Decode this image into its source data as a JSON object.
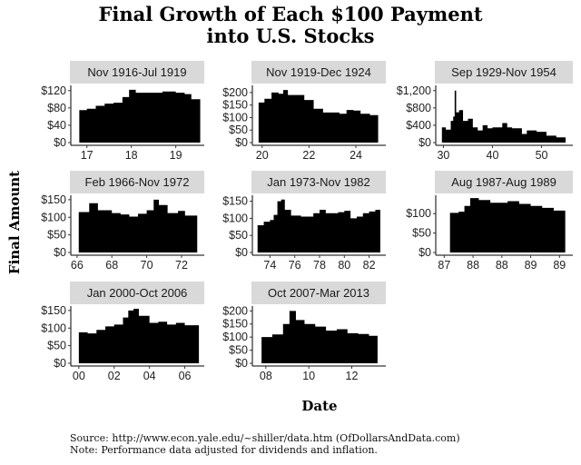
{
  "chart_data": {
    "type": "area",
    "title": [
      "Final Growth of Each $100 Payment",
      "into U.S. Stocks"
    ],
    "xlabel": "Date",
    "ylabel": "Final Amount",
    "source": "Source:  http://www.econ.yale.edu/~shiller/data.htm (OfDollarsAndData.com)",
    "note": "Note:  Performance data adjusted for dividends and inflation.",
    "fill_color": "#000000",
    "strip_color": "#d9d9d9",
    "grid": false,
    "panels": [
      {
        "label": "Nov 1916-Jul 1919",
        "xlim": [
          16.7,
          19.6
        ],
        "ylim": [
          0,
          130
        ],
        "xticks": [
          17,
          18,
          19
        ],
        "xticklabels": [
          "17",
          "18",
          "19"
        ],
        "yticks": [
          0,
          40,
          80,
          120
        ],
        "yticklabels": [
          "$0",
          "$40",
          "$80",
          "$120"
        ],
        "x": [
          16.83,
          17.0,
          17.2,
          17.4,
          17.6,
          17.8,
          17.95,
          18.1,
          18.4,
          18.7,
          19.0,
          19.2,
          19.35,
          19.55
        ],
        "y": [
          75,
          78,
          85,
          90,
          92,
          105,
          122,
          115,
          115,
          118,
          115,
          112,
          100,
          98
        ]
      },
      {
        "label": "Nov 1919-Dec 1924",
        "xlim": [
          19.7,
          25.2
        ],
        "ylim": [
          0,
          225
        ],
        "xticks": [
          20,
          22,
          24
        ],
        "xticklabels": [
          "20",
          "22",
          "24"
        ],
        "yticks": [
          0,
          50,
          100,
          150,
          200
        ],
        "yticklabels": [
          "$0",
          "$50",
          "$100",
          "$150",
          "$200"
        ],
        "x": [
          19.85,
          20.1,
          20.4,
          20.7,
          20.9,
          21.1,
          21.5,
          21.8,
          22.2,
          22.6,
          23.0,
          23.3,
          23.6,
          23.9,
          24.2,
          24.6,
          24.95
        ],
        "y": [
          160,
          175,
          200,
          195,
          210,
          190,
          190,
          170,
          135,
          120,
          120,
          115,
          130,
          128,
          115,
          110,
          98
        ]
      },
      {
        "label": "Sep 1929-Nov 1954",
        "xlim": [
          29,
          56
        ],
        "ylim": [
          0,
          1300
        ],
        "xticks": [
          30,
          40,
          50
        ],
        "xticklabels": [
          "30",
          "40",
          "50"
        ],
        "yticks": [
          0,
          400,
          800,
          1200
        ],
        "yticklabels": [
          "$0",
          "$400",
          "$800",
          "$1,200"
        ],
        "x": [
          29.7,
          30.5,
          31.5,
          32.0,
          32.3,
          32.6,
          33.2,
          34,
          35,
          36,
          37,
          38,
          39,
          40,
          42,
          43,
          44,
          46,
          47,
          49,
          51,
          53,
          54.9
        ],
        "y": [
          350,
          300,
          500,
          600,
          1200,
          700,
          750,
          500,
          550,
          350,
          280,
          400,
          330,
          350,
          450,
          350,
          330,
          200,
          280,
          250,
          160,
          120,
          80
        ]
      },
      {
        "label": "Feb 1966-Nov 1972",
        "xlim": [
          65.8,
          73.2
        ],
        "ylim": [
          0,
          160
        ],
        "xticks": [
          66,
          68,
          70,
          72
        ],
        "xticklabels": [
          "66",
          "68",
          "70",
          "72"
        ],
        "yticks": [
          0,
          50,
          100,
          150
        ],
        "yticklabels": [
          "$0",
          "$50",
          "$100",
          "$150"
        ],
        "x": [
          66.1,
          66.7,
          67.2,
          68,
          68.5,
          69,
          69.5,
          70,
          70.4,
          70.7,
          71.2,
          71.8,
          72.2,
          72.9
        ],
        "y": [
          115,
          140,
          120,
          112,
          108,
          102,
          110,
          120,
          150,
          135,
          112,
          118,
          105,
          98
        ]
      },
      {
        "label": "Jan 1973-Nov 1982",
        "xlim": [
          72.8,
          83.2
        ],
        "ylim": [
          0,
          165
        ],
        "xticks": [
          74,
          76,
          78,
          80,
          82
        ],
        "xticklabels": [
          "74",
          "76",
          "78",
          "80",
          "82"
        ],
        "yticks": [
          0,
          50,
          100,
          150
        ],
        "yticklabels": [
          "$0",
          "$50",
          "$100",
          "$150"
        ],
        "x": [
          73,
          73.5,
          74,
          74.3,
          74.6,
          74.9,
          75.2,
          75.7,
          76.5,
          77.5,
          78,
          78.5,
          79.5,
          80,
          80.5,
          81,
          81.5,
          82,
          82.5,
          82.9
        ],
        "y": [
          80,
          90,
          95,
          110,
          150,
          155,
          125,
          108,
          105,
          115,
          125,
          115,
          118,
          122,
          100,
          105,
          115,
          120,
          125,
          98
        ]
      },
      {
        "label": "Aug 1987-Aug 1989",
        "xlim": [
          87.4,
          89.7
        ],
        "ylim": [
          0,
          145
        ],
        "xticks": [
          87.5,
          88,
          88.5,
          89,
          89.5
        ],
        "xticklabels": [
          "87",
          "88",
          "88",
          "89",
          "89"
        ],
        "yticks": [
          0,
          50,
          100
        ],
        "yticklabels": [
          "$0",
          "$50",
          "$100"
        ],
        "x": [
          87.6,
          87.75,
          87.85,
          87.95,
          88.1,
          88.3,
          88.6,
          88.8,
          89.0,
          89.2,
          89.4,
          89.6
        ],
        "y": [
          102,
          105,
          120,
          140,
          135,
          128,
          132,
          125,
          120,
          115,
          108,
          98
        ]
      },
      {
        "label": "Jan 2000-Oct 2006",
        "xlim": [
          99.7,
          107
        ],
        "ylim": [
          0,
          160
        ],
        "xticks": [
          100,
          102,
          104,
          106
        ],
        "xticklabels": [
          "00",
          "02",
          "04",
          "06"
        ],
        "yticks": [
          0,
          50,
          100,
          150
        ],
        "yticklabels": [
          "$0",
          "$50",
          "$100",
          "$150"
        ],
        "x": [
          100,
          100.5,
          101,
          101.5,
          102,
          102.5,
          102.8,
          103.1,
          103.4,
          104,
          104.5,
          105,
          105.5,
          106,
          106.8
        ],
        "y": [
          88,
          85,
          95,
          105,
          110,
          130,
          150,
          155,
          135,
          115,
          118,
          110,
          115,
          108,
          100
        ]
      },
      {
        "label": "Oct 2007-Mar 2013",
        "xlim": [
          107.5,
          113.5
        ],
        "ylim": [
          0,
          215
        ],
        "xticks": [
          108,
          110,
          112
        ],
        "xticklabels": [
          "08",
          "10",
          "12"
        ],
        "yticks": [
          0,
          50,
          100,
          150,
          200
        ],
        "yticklabels": [
          "$0",
          "$50",
          "$100",
          "$150",
          "$200"
        ],
        "x": [
          107.8,
          108.3,
          108.8,
          109.1,
          109.4,
          109.8,
          110.3,
          110.8,
          111.3,
          111.8,
          112.3,
          112.8,
          113.2
        ],
        "y": [
          100,
          110,
          150,
          200,
          165,
          150,
          140,
          125,
          130,
          115,
          112,
          105,
          98
        ]
      }
    ]
  }
}
